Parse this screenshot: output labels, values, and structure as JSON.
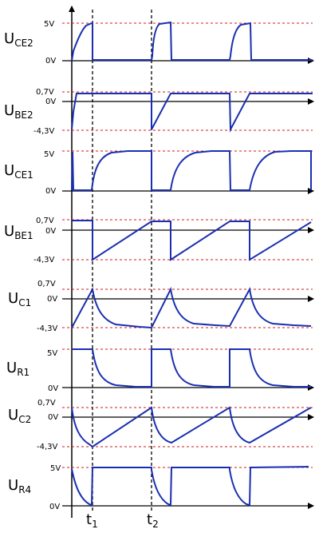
{
  "colors": {
    "signal": "#1a2fb0",
    "reference": "#d11b1b",
    "axis": "#000000"
  },
  "time_markers": [
    {
      "label": "t",
      "sub": "1"
    },
    {
      "label": "t",
      "sub": "2"
    }
  ],
  "traces": [
    {
      "id": "uce2",
      "name": "U",
      "sub": "CE2",
      "ticks": [
        "5V",
        "0V"
      ]
    },
    {
      "id": "ube2",
      "name": "U",
      "sub": "BE2",
      "ticks": [
        "0,7V",
        "0V",
        "-4,3V"
      ]
    },
    {
      "id": "uce1",
      "name": "U",
      "sub": "CE1",
      "ticks": [
        "5V",
        "0V"
      ]
    },
    {
      "id": "ube1",
      "name": "U",
      "sub": "BE1",
      "ticks": [
        "0,7V",
        "0V",
        "-4,3V"
      ]
    },
    {
      "id": "uc1",
      "name": "U",
      "sub": "C1",
      "ticks": [
        "0,7V",
        "0V",
        "-4,3V"
      ]
    },
    {
      "id": "ur1",
      "name": "U",
      "sub": "R1",
      "ticks": [
        "5V",
        "0V"
      ]
    },
    {
      "id": "uc2",
      "name": "U",
      "sub": "C2",
      "ticks": [
        "0,7V",
        "0V",
        "-4,3V"
      ]
    },
    {
      "id": "ur4",
      "name": "U",
      "sub": "R4",
      "ticks": [
        "5V",
        "0V"
      ]
    }
  ]
}
